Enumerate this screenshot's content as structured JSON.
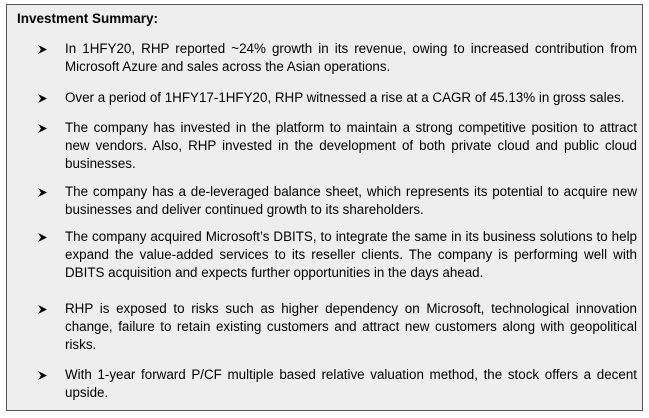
{
  "summary": {
    "heading": "Investment Summary:",
    "bullet_icon": "arrow-bullet-icon",
    "items": [
      "In 1HFY20, RHP reported ~24% growth in its revenue, owing to increased contribution from Microsoft Azure and sales across the Asian operations.",
      "Over a period of 1HFY17-1HFY20, RHP witnessed a rise at a CAGR of 45.13% in gross sales.",
      "The company has invested in the platform to maintain a strong competitive position to attract new vendors. Also, RHP invested in the development of both private cloud and public cloud businesses.",
      "The company has a de-leveraged balance sheet, which represents its potential to acquire new businesses and deliver continued growth to its shareholders.",
      "The company acquired Microsoft’s DBITS, to integrate the same in its business solutions to help expand the value-added services to its reseller clients. The company is performing well with DBITS acquisition and expects further opportunities in the days ahead.",
      "RHP is exposed to risks such as higher dependency on Microsoft, technological innovation change, failure to retain existing customers and attract new customers along with geopolitical risks.",
      "With 1-year forward P/CF multiple based relative valuation method, the stock offers a decent upside."
    ]
  }
}
